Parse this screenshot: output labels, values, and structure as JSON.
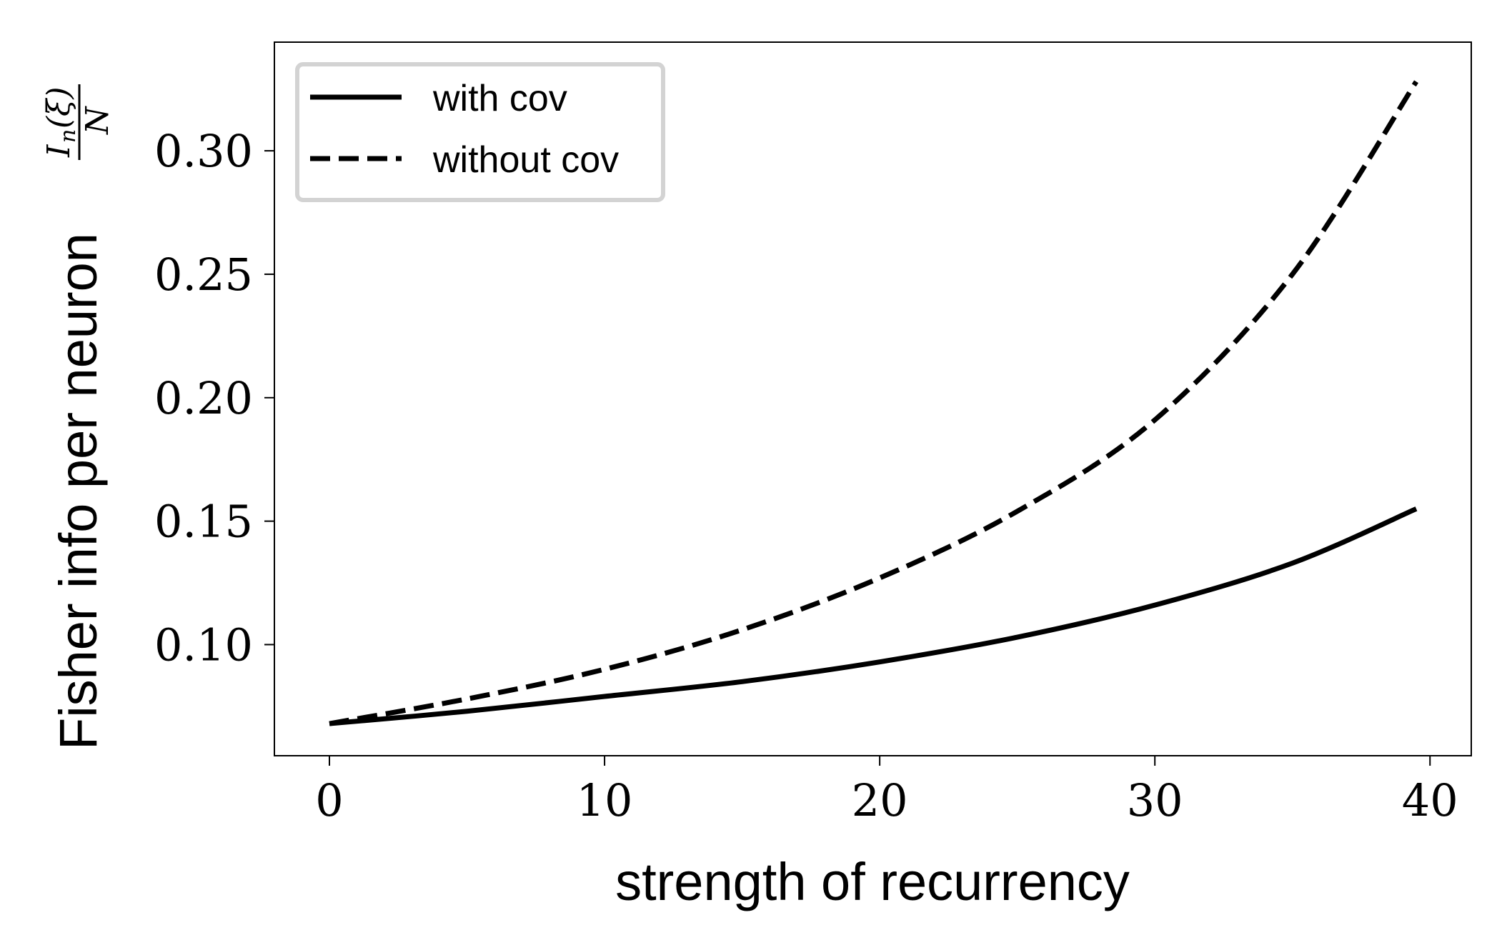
{
  "chart_data": {
    "type": "line",
    "title": "",
    "xlabel": "strength of recurrency",
    "ylabel": "Fisher info per neuron",
    "ylabel_formula": {
      "numerator_symbol": "I",
      "numerator_subscript": "n",
      "numerator_arg": "(ξ)",
      "denominator": "N"
    },
    "xlim": [
      -2,
      41.5
    ],
    "ylim": [
      0.055,
      0.344
    ],
    "x_ticks": [
      0,
      10,
      20,
      30,
      40
    ],
    "x_tick_labels": [
      "0",
      "10",
      "20",
      "30",
      "40"
    ],
    "y_ticks": [
      0.1,
      0.15,
      0.2,
      0.25,
      0.3
    ],
    "y_tick_labels": [
      "0.10",
      "0.15",
      "0.20",
      "0.25",
      "0.30"
    ],
    "grid": false,
    "legend_position": "top-left",
    "x": [
      0,
      5,
      10,
      15,
      20,
      25,
      30,
      35,
      39.5
    ],
    "series": [
      {
        "name": "with cov",
        "style": "solid",
        "color": "#000000",
        "values": [
          0.068,
          0.073,
          0.079,
          0.085,
          0.093,
          0.103,
          0.116,
          0.133,
          0.155
        ]
      },
      {
        "name": "without cov",
        "style": "dashed",
        "color": "#000000",
        "values": [
          0.068,
          0.078,
          0.09,
          0.106,
          0.127,
          0.154,
          0.191,
          0.25,
          0.328
        ]
      }
    ]
  }
}
